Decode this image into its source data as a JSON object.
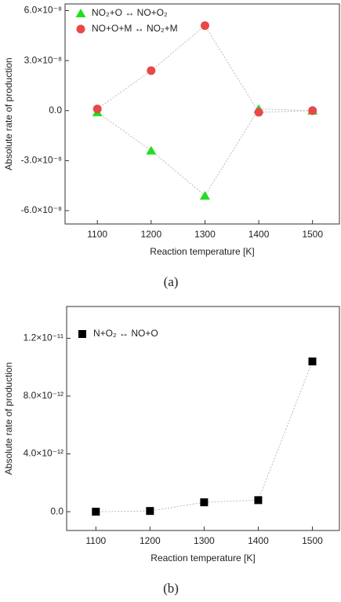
{
  "chart_data": [
    {
      "type": "scatter",
      "x": [
        1100,
        1200,
        1300,
        1400,
        1500
      ],
      "xlim": [
        1040,
        1550
      ],
      "xticks": [
        1100,
        1200,
        1300,
        1400,
        1500
      ],
      "ylim": [
        -6.8e-08,
        6.4e-08
      ],
      "yticks": [
        {
          "value": -6e-08,
          "label": "-6.0×10⁻⁸"
        },
        {
          "value": -3e-08,
          "label": "-3.0×10⁻⁸"
        },
        {
          "value": 0,
          "label": "0.0"
        },
        {
          "value": 3e-08,
          "label": "3.0×10⁻⁸"
        },
        {
          "value": 6e-08,
          "label": "6.0×10⁻⁸"
        }
      ],
      "x_label": "Reaction temperature [K]",
      "y_label": "Absolute rate of production",
      "legend": "top-left",
      "caption": "(a)",
      "series": [
        {
          "name": "NO₂+O ↔ NO+O₂",
          "color": "#22dd22",
          "marker": "triangle",
          "values": [
            -1e-09,
            -2.4e-08,
            -5.1e-08,
            1e-09,
            0
          ]
        },
        {
          "name": "NO+O+M ↔ NO₂+M",
          "color": "#e84848",
          "marker": "circle",
          "values": [
            1e-09,
            2.4e-08,
            5.1e-08,
            -1e-09,
            0
          ]
        }
      ]
    },
    {
      "type": "scatter",
      "x": [
        1100,
        1200,
        1300,
        1400,
        1500
      ],
      "xlim": [
        1046,
        1550
      ],
      "xticks": [
        1100,
        1200,
        1300,
        1400,
        1500
      ],
      "ylim": [
        -1.3e-12,
        1.42e-11
      ],
      "yticks": [
        {
          "value": 0,
          "label": "0.0"
        },
        {
          "value": 4e-12,
          "label": "4.0×10⁻¹²"
        },
        {
          "value": 8e-12,
          "label": "8.0×10⁻¹²"
        },
        {
          "value": 1.2e-11,
          "label": "1.2×10⁻¹¹"
        }
      ],
      "x_label": "Reaction temperature [K]",
      "y_label": "Absolute rate of production",
      "legend": "top-left",
      "caption": "(b)",
      "series": [
        {
          "name": "N+O₂ ↔ NO+O",
          "color": "#000000",
          "marker": "square",
          "values": [
            0,
            5e-14,
            6.5e-13,
            8e-13,
            1.04e-11
          ]
        }
      ]
    }
  ]
}
